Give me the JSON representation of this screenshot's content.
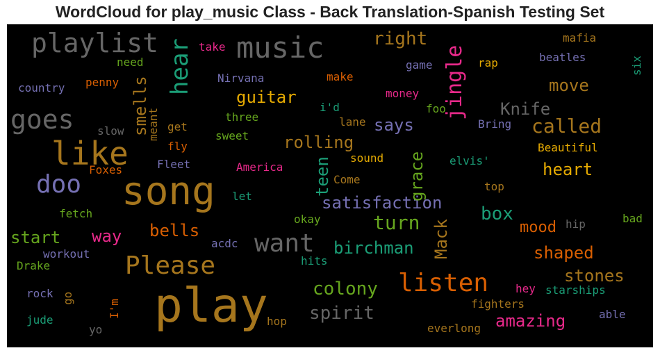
{
  "chart_data": {
    "type": "wordcloud",
    "title": "WordCloud for play_music Class - Back Translation-Spanish Testing Set",
    "words": [
      {
        "text": "play",
        "color": "#a6761d"
      },
      {
        "text": "song",
        "color": "#a6761d"
      },
      {
        "text": "like",
        "color": "#a6761d"
      },
      {
        "text": "music",
        "color": "#666666"
      },
      {
        "text": "playlist",
        "color": "#666666"
      },
      {
        "text": "goes",
        "color": "#666666"
      },
      {
        "text": "listen",
        "color": "#d95f02"
      },
      {
        "text": "want",
        "color": "#666666"
      },
      {
        "text": "Please",
        "color": "#a6761d"
      },
      {
        "text": "doo",
        "color": "#7570b3"
      },
      {
        "text": "hear",
        "color": "#1b9e77"
      },
      {
        "text": "jingle",
        "color": "#e7298a"
      },
      {
        "text": "called",
        "color": "#a6761d"
      },
      {
        "text": "right",
        "color": "#a6761d"
      },
      {
        "text": "satisfaction",
        "color": "#7570b3"
      },
      {
        "text": "rolling",
        "color": "#a6761d"
      },
      {
        "text": "turn",
        "color": "#66a61e"
      },
      {
        "text": "birchman",
        "color": "#1b9e77"
      },
      {
        "text": "amazing",
        "color": "#e7298a"
      },
      {
        "text": "spirit",
        "color": "#666666"
      },
      {
        "text": "colony",
        "color": "#66a61e"
      },
      {
        "text": "shaped",
        "color": "#d95f02"
      },
      {
        "text": "stones",
        "color": "#a6761d"
      },
      {
        "text": "heart",
        "color": "#e6ab02"
      },
      {
        "text": "guitar",
        "color": "#e6ab02"
      },
      {
        "text": "move",
        "color": "#a6761d"
      },
      {
        "text": "Knife",
        "color": "#666666"
      },
      {
        "text": "says",
        "color": "#7570b3"
      },
      {
        "text": "grace",
        "color": "#66a61e"
      },
      {
        "text": "teen",
        "color": "#1b9e77"
      },
      {
        "text": "Mack",
        "color": "#a6761d"
      },
      {
        "text": "box",
        "color": "#1b9e77"
      },
      {
        "text": "mood",
        "color": "#d95f02"
      },
      {
        "text": "start",
        "color": "#66a61e"
      },
      {
        "text": "way",
        "color": "#e7298a"
      },
      {
        "text": "bells",
        "color": "#d95f02"
      },
      {
        "text": "smells",
        "color": "#a6761d"
      },
      {
        "text": "take",
        "color": "#e7298a"
      },
      {
        "text": "need",
        "color": "#66a61e"
      },
      {
        "text": "country",
        "color": "#7570b3"
      },
      {
        "text": "penny",
        "color": "#d95f02"
      },
      {
        "text": "Nirvana",
        "color": "#7570b3"
      },
      {
        "text": "make",
        "color": "#d95f02"
      },
      {
        "text": "game",
        "color": "#7570b3"
      },
      {
        "text": "rap",
        "color": "#e6ab02"
      },
      {
        "text": "mafia",
        "color": "#a6761d"
      },
      {
        "text": "beatles",
        "color": "#7570b3"
      },
      {
        "text": "six",
        "color": "#1b9e77"
      },
      {
        "text": "money",
        "color": "#e7298a"
      },
      {
        "text": "i'd",
        "color": "#1b9e77"
      },
      {
        "text": "foo",
        "color": "#66a61e"
      },
      {
        "text": "three",
        "color": "#66a61e"
      },
      {
        "text": "lane",
        "color": "#a6761d"
      },
      {
        "text": "Bring",
        "color": "#7570b3"
      },
      {
        "text": "slow",
        "color": "#666666"
      },
      {
        "text": "get",
        "color": "#a6761d"
      },
      {
        "text": "meant",
        "color": "#a6761d"
      },
      {
        "text": "fly",
        "color": "#d95f02"
      },
      {
        "text": "sweet",
        "color": "#66a61e"
      },
      {
        "text": "Beautiful",
        "color": "#e6ab02"
      },
      {
        "text": "Foxes",
        "color": "#d95f02"
      },
      {
        "text": "Fleet",
        "color": "#7570b3"
      },
      {
        "text": "America",
        "color": "#e7298a"
      },
      {
        "text": "sound",
        "color": "#e6ab02"
      },
      {
        "text": "elvis'",
        "color": "#1b9e77"
      },
      {
        "text": "Come",
        "color": "#a6761d"
      },
      {
        "text": "top",
        "color": "#a6761d"
      },
      {
        "text": "let",
        "color": "#1b9e77"
      },
      {
        "text": "fetch",
        "color": "#66a61e"
      },
      {
        "text": "okay",
        "color": "#66a61e"
      },
      {
        "text": "hip",
        "color": "#666666"
      },
      {
        "text": "bad",
        "color": "#66a61e"
      },
      {
        "text": "acdc",
        "color": "#7570b3"
      },
      {
        "text": "workout",
        "color": "#7570b3"
      },
      {
        "text": "Drake",
        "color": "#66a61e"
      },
      {
        "text": "hits",
        "color": "#1b9e77"
      },
      {
        "text": "rock",
        "color": "#7570b3"
      },
      {
        "text": "go",
        "color": "#a6761d"
      },
      {
        "text": "I'm",
        "color": "#d95f02"
      },
      {
        "text": "hey",
        "color": "#e7298a"
      },
      {
        "text": "starships",
        "color": "#1b9e77"
      },
      {
        "text": "fighters",
        "color": "#a6761d"
      },
      {
        "text": "able",
        "color": "#7570b3"
      },
      {
        "text": "jude",
        "color": "#1b9e77"
      },
      {
        "text": "hop",
        "color": "#a6761d"
      },
      {
        "text": "everlong",
        "color": "#a6761d"
      },
      {
        "text": "yo",
        "color": "#666666"
      }
    ]
  }
}
